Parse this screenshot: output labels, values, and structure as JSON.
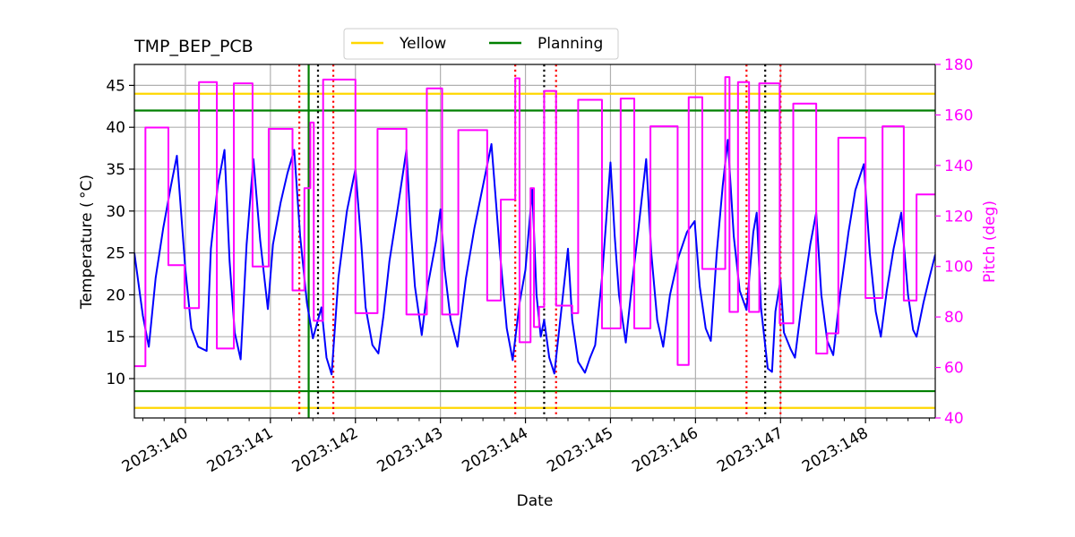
{
  "chart_data": {
    "type": "line",
    "title": "TMP_BEP_PCB",
    "xlabel": "Date",
    "ylabel_left": "Temperature ($^\\circ$C)",
    "ylabel_left_display": "Temperature ( °C)",
    "ylabel_right": "Pitch (deg)",
    "x_unit": "day-of-year 2023",
    "xlim": [
      139.4,
      148.82
    ],
    "ylim_left": [
      5.3,
      47.5
    ],
    "ylim_right": [
      40,
      180
    ],
    "x_ticks": [
      140,
      141,
      142,
      143,
      144,
      145,
      146,
      147,
      148
    ],
    "x_tick_labels": [
      "2023:140",
      "2023:141",
      "2023:142",
      "2023:143",
      "2023:144",
      "2023:145",
      "2023:146",
      "2023:147",
      "2023:148"
    ],
    "y_left_ticks": [
      10,
      15,
      20,
      25,
      30,
      35,
      40,
      45
    ],
    "y_left_tick_labels": [
      "10",
      "15",
      "20",
      "25",
      "30",
      "35",
      "40",
      "45"
    ],
    "y_right_ticks": [
      40,
      60,
      80,
      100,
      120,
      140,
      160,
      180
    ],
    "y_right_tick_labels": [
      "40",
      "60",
      "80",
      "100",
      "120",
      "140",
      "160",
      "180"
    ],
    "grid": true,
    "legend": {
      "placement": "top-center",
      "entries": [
        {
          "label": "Yellow",
          "color": "#FFD700"
        },
        {
          "label": "Planning",
          "color": "#008000"
        }
      ]
    },
    "limit_lines": [
      {
        "name": "yellow-high",
        "value": 44.0,
        "color": "#FFD700"
      },
      {
        "name": "yellow-low",
        "value": 6.5,
        "color": "#FFD700"
      },
      {
        "name": "planning-high",
        "value": 42.0,
        "color": "#008000"
      },
      {
        "name": "planning-low",
        "value": 8.5,
        "color": "#008000"
      }
    ],
    "vertical_lines": [
      {
        "x": 141.34,
        "style": "red-dotted",
        "color": "#FF0000"
      },
      {
        "x": 141.45,
        "style": "green-solid",
        "color": "#008000"
      },
      {
        "x": 141.56,
        "style": "black-dotted",
        "color": "#000000"
      },
      {
        "x": 141.74,
        "style": "red-dotted",
        "color": "#FF0000"
      },
      {
        "x": 143.88,
        "style": "red-dotted",
        "color": "#FF0000"
      },
      {
        "x": 144.22,
        "style": "black-dotted",
        "color": "#000000"
      },
      {
        "x": 144.36,
        "style": "red-dotted",
        "color": "#FF0000"
      },
      {
        "x": 146.6,
        "style": "red-dotted",
        "color": "#FF0000"
      },
      {
        "x": 146.82,
        "style": "black-dotted",
        "color": "#000000"
      },
      {
        "x": 147.0,
        "style": "red-dotted",
        "color": "#FF0000"
      }
    ],
    "series": [
      {
        "name": "Temperature",
        "axis": "left",
        "color": "#0000FF",
        "points": [
          [
            139.4,
            25.0
          ],
          [
            139.5,
            17.5
          ],
          [
            139.57,
            13.8
          ],
          [
            139.65,
            22.0
          ],
          [
            139.74,
            28.0
          ],
          [
            139.83,
            33.0
          ],
          [
            139.9,
            36.6
          ],
          [
            140.0,
            23.0
          ],
          [
            140.07,
            16.0
          ],
          [
            140.15,
            13.8
          ],
          [
            140.25,
            13.3
          ],
          [
            140.3,
            25.5
          ],
          [
            140.38,
            33.0
          ],
          [
            140.46,
            37.3
          ],
          [
            140.52,
            24.0
          ],
          [
            140.58,
            15.5
          ],
          [
            140.65,
            12.3
          ],
          [
            140.72,
            26.0
          ],
          [
            140.8,
            36.2
          ],
          [
            140.88,
            26.5
          ],
          [
            140.97,
            18.3
          ],
          [
            141.03,
            26.0
          ],
          [
            141.12,
            31.0
          ],
          [
            141.2,
            34.5
          ],
          [
            141.28,
            37.3
          ],
          [
            141.35,
            27.0
          ],
          [
            141.43,
            19.0
          ],
          [
            141.5,
            14.8
          ],
          [
            141.6,
            18.5
          ],
          [
            141.66,
            12.5
          ],
          [
            141.72,
            10.5
          ],
          [
            141.8,
            22.0
          ],
          [
            141.9,
            30.0
          ],
          [
            142.0,
            35.0
          ],
          [
            142.07,
            26.0
          ],
          [
            142.12,
            18.5
          ],
          [
            142.2,
            14.0
          ],
          [
            142.27,
            13.0
          ],
          [
            142.33,
            17.5
          ],
          [
            142.4,
            24.0
          ],
          [
            142.5,
            30.5
          ],
          [
            142.6,
            37.3
          ],
          [
            142.65,
            28.0
          ],
          [
            142.7,
            21.0
          ],
          [
            142.78,
            15.2
          ],
          [
            142.85,
            21.0
          ],
          [
            142.95,
            26.5
          ],
          [
            143.0,
            30.2
          ],
          [
            143.05,
            23.0
          ],
          [
            143.12,
            17.0
          ],
          [
            143.2,
            13.8
          ],
          [
            143.3,
            22.0
          ],
          [
            143.4,
            28.0
          ],
          [
            143.5,
            33.0
          ],
          [
            143.6,
            38.0
          ],
          [
            143.7,
            25.0
          ],
          [
            143.78,
            16.0
          ],
          [
            143.85,
            12.2
          ],
          [
            143.93,
            19.0
          ],
          [
            144.0,
            23.0
          ],
          [
            144.08,
            32.6
          ],
          [
            144.13,
            20.0
          ],
          [
            144.18,
            15.0
          ],
          [
            144.22,
            17.0
          ],
          [
            144.28,
            12.5
          ],
          [
            144.34,
            10.6
          ],
          [
            144.42,
            18.0
          ],
          [
            144.5,
            25.5
          ],
          [
            144.55,
            17.0
          ],
          [
            144.62,
            12.0
          ],
          [
            144.7,
            10.7
          ],
          [
            144.76,
            12.5
          ],
          [
            144.82,
            14.0
          ],
          [
            144.9,
            22.0
          ],
          [
            145.0,
            35.8
          ],
          [
            145.05,
            27.0
          ],
          [
            145.1,
            20.0
          ],
          [
            145.18,
            14.3
          ],
          [
            145.25,
            21.0
          ],
          [
            145.33,
            28.0
          ],
          [
            145.42,
            36.2
          ],
          [
            145.48,
            25.0
          ],
          [
            145.55,
            17.0
          ],
          [
            145.62,
            13.8
          ],
          [
            145.7,
            20.0
          ],
          [
            145.8,
            24.5
          ],
          [
            145.9,
            27.5
          ],
          [
            145.99,
            28.8
          ],
          [
            146.05,
            21.0
          ],
          [
            146.12,
            16.0
          ],
          [
            146.18,
            14.5
          ],
          [
            146.25,
            25.0
          ],
          [
            146.32,
            33.0
          ],
          [
            146.38,
            38.5
          ],
          [
            146.45,
            27.0
          ],
          [
            146.52,
            20.5
          ],
          [
            146.6,
            18.2
          ],
          [
            146.68,
            27.5
          ],
          [
            146.72,
            29.8
          ],
          [
            146.77,
            18.5
          ],
          [
            146.85,
            11.2
          ],
          [
            146.9,
            10.8
          ],
          [
            146.94,
            18.0
          ],
          [
            147.0,
            21.8
          ],
          [
            147.04,
            15.5
          ],
          [
            147.12,
            13.5
          ],
          [
            147.17,
            12.5
          ],
          [
            147.25,
            19.0
          ],
          [
            147.35,
            26.0
          ],
          [
            147.42,
            29.8
          ],
          [
            147.48,
            20.0
          ],
          [
            147.55,
            14.5
          ],
          [
            147.62,
            12.8
          ],
          [
            147.7,
            20.0
          ],
          [
            147.8,
            27.5
          ],
          [
            147.88,
            32.5
          ],
          [
            147.98,
            35.6
          ],
          [
            148.05,
            25.0
          ],
          [
            148.12,
            18.0
          ],
          [
            148.18,
            15.0
          ],
          [
            148.25,
            20.5
          ],
          [
            148.33,
            25.5
          ],
          [
            148.42,
            29.8
          ],
          [
            148.5,
            20.0
          ],
          [
            148.56,
            15.8
          ],
          [
            148.6,
            15.0
          ],
          [
            148.68,
            19.0
          ],
          [
            148.75,
            22.0
          ],
          [
            148.82,
            24.8
          ]
        ]
      },
      {
        "name": "Pitch",
        "axis": "right",
        "color": "#FF00FF",
        "points": [
          [
            139.4,
            60.5
          ],
          [
            139.53,
            60.5
          ],
          [
            139.53,
            155.0
          ],
          [
            139.8,
            155.0
          ],
          [
            139.8,
            100.5
          ],
          [
            139.99,
            100.5
          ],
          [
            139.99,
            83.5
          ],
          [
            140.16,
            83.5
          ],
          [
            140.16,
            173.0
          ],
          [
            140.37,
            173.0
          ],
          [
            140.37,
            67.5
          ],
          [
            140.57,
            67.5
          ],
          [
            140.57,
            172.5
          ],
          [
            140.79,
            172.5
          ],
          [
            140.79,
            100.0
          ],
          [
            140.98,
            100.0
          ],
          [
            140.98,
            154.5
          ],
          [
            141.26,
            154.5
          ],
          [
            141.26,
            90.5
          ],
          [
            141.4,
            90.5
          ],
          [
            141.4,
            131.0
          ],
          [
            141.47,
            131.0
          ],
          [
            141.47,
            157.0
          ],
          [
            141.51,
            157.0
          ],
          [
            141.51,
            78.5
          ],
          [
            141.62,
            78.5
          ],
          [
            141.62,
            174.0
          ],
          [
            142.0,
            174.0
          ],
          [
            142.0,
            81.5
          ],
          [
            142.26,
            81.5
          ],
          [
            142.26,
            154.5
          ],
          [
            142.6,
            154.5
          ],
          [
            142.6,
            81.0
          ],
          [
            142.84,
            81.0
          ],
          [
            142.84,
            170.5
          ],
          [
            143.02,
            170.5
          ],
          [
            143.02,
            81.0
          ],
          [
            143.21,
            81.0
          ],
          [
            143.21,
            154.0
          ],
          [
            143.55,
            154.0
          ],
          [
            143.55,
            86.5
          ],
          [
            143.71,
            86.5
          ],
          [
            143.71,
            126.5
          ],
          [
            143.88,
            126.5
          ],
          [
            143.88,
            174.5
          ],
          [
            143.93,
            174.5
          ],
          [
            143.93,
            70.0
          ],
          [
            144.06,
            70.0
          ],
          [
            144.06,
            131.0
          ],
          [
            144.1,
            131.0
          ],
          [
            144.1,
            76.0
          ],
          [
            144.16,
            76.0
          ],
          [
            144.16,
            84.0
          ],
          [
            144.22,
            84.0
          ],
          [
            144.22,
            169.5
          ],
          [
            144.36,
            169.5
          ],
          [
            144.36,
            84.5
          ],
          [
            144.55,
            84.5
          ],
          [
            144.55,
            81.5
          ],
          [
            144.62,
            81.5
          ],
          [
            144.62,
            166.0
          ],
          [
            144.9,
            166.0
          ],
          [
            144.9,
            75.5
          ],
          [
            145.12,
            75.5
          ],
          [
            145.12,
            166.5
          ],
          [
            145.28,
            166.5
          ],
          [
            145.28,
            75.5
          ],
          [
            145.47,
            75.5
          ],
          [
            145.47,
            155.5
          ],
          [
            145.79,
            155.5
          ],
          [
            145.79,
            61.0
          ],
          [
            145.92,
            61.0
          ],
          [
            145.92,
            167.0
          ],
          [
            146.08,
            167.0
          ],
          [
            146.08,
            99.0
          ],
          [
            146.35,
            99.0
          ],
          [
            146.35,
            175.0
          ],
          [
            146.4,
            175.0
          ],
          [
            146.4,
            82.0
          ],
          [
            146.5,
            82.0
          ],
          [
            146.5,
            173.0
          ],
          [
            146.63,
            173.0
          ],
          [
            146.63,
            82.0
          ],
          [
            146.75,
            82.0
          ],
          [
            146.75,
            172.5
          ],
          [
            146.99,
            172.5
          ],
          [
            146.99,
            77.5
          ],
          [
            147.15,
            77.5
          ],
          [
            147.15,
            164.5
          ],
          [
            147.42,
            164.5
          ],
          [
            147.42,
            65.5
          ],
          [
            147.55,
            65.5
          ],
          [
            147.55,
            73.5
          ],
          [
            147.68,
            73.5
          ],
          [
            147.68,
            151.0
          ],
          [
            148.0,
            151.0
          ],
          [
            148.0,
            87.5
          ],
          [
            148.2,
            87.5
          ],
          [
            148.2,
            155.5
          ],
          [
            148.45,
            155.5
          ],
          [
            148.45,
            86.5
          ],
          [
            148.6,
            86.5
          ],
          [
            148.6,
            128.5
          ],
          [
            148.82,
            128.5
          ]
        ]
      }
    ]
  }
}
